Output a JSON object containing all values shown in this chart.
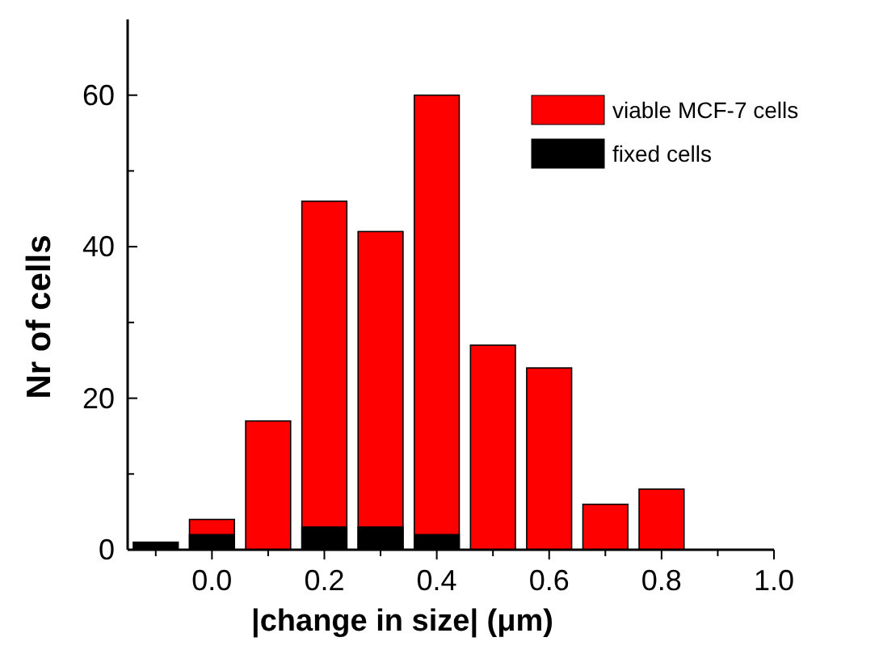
{
  "chart_data": {
    "type": "bar",
    "xlabel": "|change in size| (μm)",
    "ylabel": "Nr of cells",
    "x": [
      -0.1,
      0.0,
      0.1,
      0.2,
      0.3,
      0.4,
      0.5,
      0.6,
      0.7,
      0.8
    ],
    "series": [
      {
        "name": "viable MCF-7 cells",
        "color": "#ff0000",
        "values": [
          null,
          4,
          17,
          46,
          42,
          60,
          27,
          24,
          6,
          8
        ]
      },
      {
        "name": "fixed cells",
        "color": "#000000",
        "values": [
          1,
          2,
          null,
          3,
          3,
          2,
          null,
          null,
          null,
          null
        ]
      }
    ],
    "xlim": [
      -0.15,
      1.0
    ],
    "xticks": [
      {
        "value": -0.1,
        "label": null
      },
      {
        "value": 0.0,
        "label": "0.0"
      },
      {
        "value": 0.1,
        "label": null
      },
      {
        "value": 0.2,
        "label": "0.2"
      },
      {
        "value": 0.3,
        "label": null
      },
      {
        "value": 0.4,
        "label": "0.4"
      },
      {
        "value": 0.5,
        "label": null
      },
      {
        "value": 0.6,
        "label": "0.6"
      },
      {
        "value": 0.7,
        "label": null
      },
      {
        "value": 0.8,
        "label": "0.8"
      },
      {
        "value": 0.9,
        "label": null
      },
      {
        "value": 1.0,
        "label": "1.0"
      }
    ],
    "ylim": [
      0,
      70
    ],
    "yticks": [
      0,
      {
        "value": 10,
        "label": null
      },
      20,
      {
        "value": 30,
        "label": null
      },
      40,
      {
        "value": 50,
        "label": null
      },
      60
    ],
    "legend": "top right"
  }
}
